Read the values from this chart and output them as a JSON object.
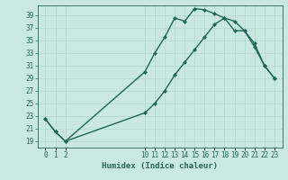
{
  "xlabel": "Humidex (Indice chaleur)",
  "background_color": "#c8e8e0",
  "grid_color": "#b0d8d0",
  "line_color": "#226655",
  "yticks": [
    19,
    21,
    23,
    25,
    27,
    29,
    31,
    33,
    35,
    37,
    39
  ],
  "xtick_positions": [
    0,
    1,
    2,
    10,
    11,
    12,
    13,
    14,
    15,
    16,
    17,
    18,
    19,
    20,
    21,
    22,
    23
  ],
  "xtick_labels": [
    "0",
    "1",
    "2",
    "10",
    "11",
    "12",
    "13",
    "14",
    "15",
    "16",
    "17",
    "18",
    "19",
    "20",
    "21",
    "22",
    "23"
  ],
  "ylim": [
    18.0,
    40.5
  ],
  "xlim": [
    -0.8,
    23.8
  ],
  "line1_x": [
    0,
    1,
    2,
    10,
    11,
    12,
    13,
    14,
    15,
    16,
    17,
    18,
    19,
    20,
    21,
    22,
    23
  ],
  "line1_y": [
    22.5,
    20.5,
    19.0,
    30.0,
    33.0,
    35.5,
    38.5,
    38.0,
    40.0,
    39.8,
    39.2,
    38.5,
    38.0,
    36.5,
    34.0,
    31.0,
    29.0
  ],
  "line2_x": [
    0,
    1,
    2,
    10,
    11,
    12,
    13,
    14,
    15,
    16,
    17,
    18,
    19,
    20,
    21,
    22,
    23
  ],
  "line2_y": [
    22.5,
    20.5,
    19.0,
    23.5,
    25.0,
    27.0,
    29.5,
    31.5,
    33.5,
    35.5,
    37.5,
    38.5,
    36.5,
    36.5,
    34.5,
    31.0,
    29.0
  ],
  "marker_size": 2.5,
  "line_width": 1.0,
  "tick_fontsize": 5.5,
  "xlabel_fontsize": 6.5
}
